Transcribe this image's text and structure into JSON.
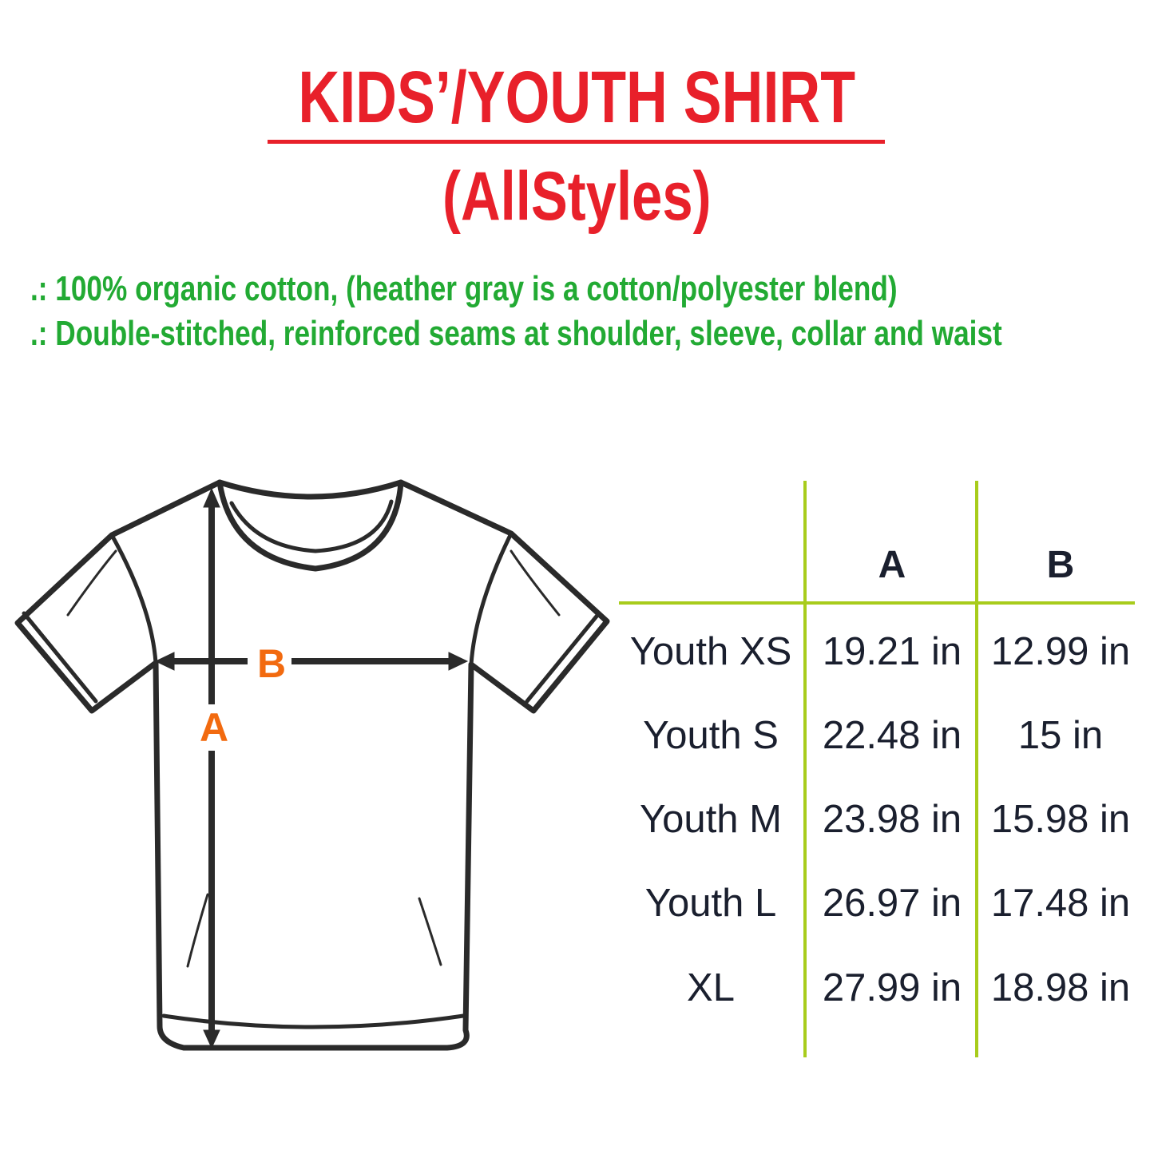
{
  "title": "KIDS’/YOUTH SHIRT",
  "subtitle": "(AllStyles)",
  "features": [
    ".: 100% organic cotton, (heather gray is a cotton/polyester blend)",
    ".: Double-stitched, reinforced seams at shoulder, sleeve, collar and waist"
  ],
  "diagram": {
    "label_a": "A",
    "label_b": "B",
    "icon": "t-shirt-outline"
  },
  "table": {
    "headers": [
      "",
      "A",
      "B"
    ],
    "rows": [
      {
        "size": "Youth XS",
        "a": "19.21 in",
        "b": "12.99 in"
      },
      {
        "size": "Youth S",
        "a": "22.48 in",
        "b": "15 in"
      },
      {
        "size": "Youth M",
        "a": "23.98 in",
        "b": "15.98 in"
      },
      {
        "size": "Youth L",
        "a": "26.97 in",
        "b": "17.48 in"
      },
      {
        "size": "XL",
        "a": "27.99 in",
        "b": "18.98 in"
      }
    ]
  },
  "colors": {
    "title": "#e8202a",
    "features": "#22aa33",
    "grid": "#a8cc1c",
    "measure_labels": "#f26a0f",
    "text": "#1a1f2e"
  }
}
